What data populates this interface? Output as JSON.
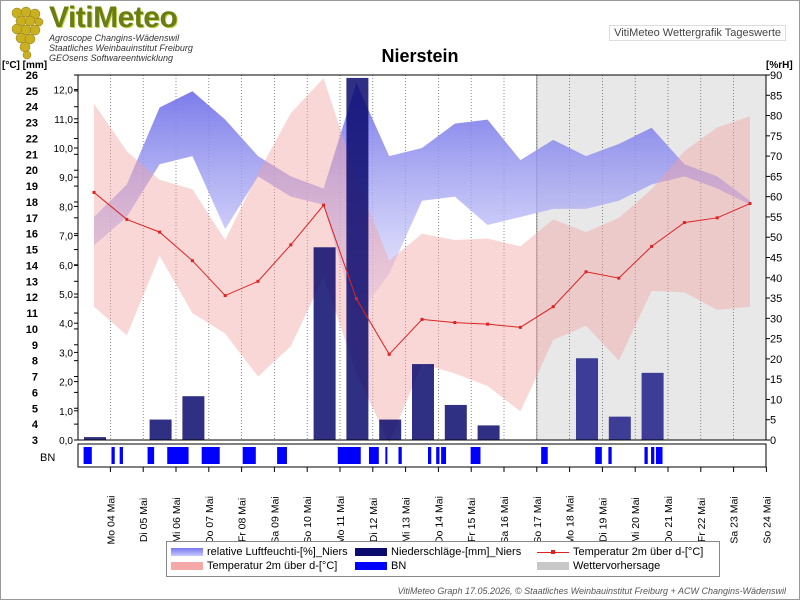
{
  "header": {
    "logo_title": "VitiMeteo",
    "logo_sub1": "Agroscope Changins-Wädenswil",
    "logo_sub2": "Staatliches Weinbauinstitut Freiburg",
    "logo_sub3": "GEOsens Softwareentwicklung",
    "badge": "VitiMeteo Wettergrafik Tageswerte",
    "title": "Nierstein",
    "left_unit": "[°C] [mm]",
    "right_unit": "[%rH]"
  },
  "footer": "VitiMeteo Graph 17.05.2026, © Staatliches Weinbauinstitut Freiburg + ACW Changins-Wädenswil",
  "legend": [
    {
      "label": "relative Luftfeuchti-[%]_Niers",
      "color": "#8888ee",
      "kind": "band"
    },
    {
      "label": "Niederschläge-[mm]_Niers",
      "color": "#0b0b6e",
      "kind": "bar"
    },
    {
      "label": "Temperatur 2m über d-[°C]",
      "color": "#dd2222",
      "kind": "line"
    },
    {
      "label": "Temperatur 2m über d-[°C]",
      "color": "#f4a8a8",
      "kind": "band"
    },
    {
      "label": "BN",
      "color": "#0000ff",
      "kind": "bar"
    },
    {
      "label": "Wettervorhersage",
      "color": "#c8c8c8",
      "kind": "bar"
    }
  ],
  "chart_data": {
    "type": "line",
    "title": "Nierstein",
    "x_labels": [
      "Mo 04 Mai",
      "Di 05 Mai",
      "Mi 06 Mai",
      "Do 07 Mai",
      "Fr 08 Mai",
      "Sa 09 Mai",
      "So 10 Mai",
      "Mo 11 Mai",
      "Di 12 Mai",
      "Mi 13 Mai",
      "Do 14 Mai",
      "Fr 15 Mai",
      "Sa 16 Mai",
      "So 17 Mai",
      "Mo 18 Mai",
      "Di 19 Mai",
      "Mi 20 Mai",
      "Do 21 Mai",
      "Fr 22 Mai",
      "Sa 23 Mai",
      "So 24 Mai"
    ],
    "temp_ticks": [
      3,
      4,
      5,
      6,
      7,
      8,
      9,
      10,
      11,
      12,
      13,
      14,
      15,
      16,
      17,
      18,
      19,
      20,
      21,
      22,
      23,
      24,
      25,
      26
    ],
    "precip_ticks": [
      "0,0",
      "1,0",
      "2,0",
      "3,0",
      "4,0",
      "5,0",
      "6,0",
      "7,0",
      "8,0",
      "9,0",
      "10,0",
      "11,0",
      "12,0"
    ],
    "rh_ticks": [
      0,
      5,
      10,
      15,
      20,
      25,
      30,
      35,
      40,
      45,
      50,
      55,
      60,
      65,
      70,
      75,
      80,
      85,
      90
    ],
    "temp_range": [
      3,
      26
    ],
    "precip_range": [
      0,
      12.5
    ],
    "rh_range": [
      0,
      90
    ],
    "temp_mean": [
      18.6,
      16.9,
      16.1,
      14.3,
      12.1,
      13.0,
      15.3,
      17.8,
      11.9,
      8.4,
      10.6,
      10.4,
      10.3,
      10.1,
      11.4,
      13.6,
      13.2,
      15.2,
      16.7,
      17.0,
      17.9
    ],
    "temp_max": [
      24.2,
      21.2,
      19.4,
      18.8,
      15.6,
      19.8,
      23.6,
      25.8,
      19.5,
      14.3,
      16.0,
      15.6,
      15.7,
      15.2,
      16.9,
      16.1,
      17.0,
      18.8,
      21.2,
      22.7,
      23.4
    ],
    "temp_min": [
      11.4,
      9.6,
      14.6,
      11.0,
      9.7,
      7.0,
      8.9,
      13.3,
      7.2,
      2.8,
      7.8,
      7.2,
      6.4,
      4.8,
      9.3,
      10.2,
      8.0,
      12.4,
      12.3,
      11.2,
      11.4
    ],
    "rh_max": [
      55,
      63,
      82,
      86,
      79,
      70,
      65,
      62,
      88,
      70,
      72,
      78,
      79,
      69,
      74,
      70,
      73,
      77,
      68,
      65,
      59
    ],
    "rh_min": [
      48,
      55,
      68,
      70,
      52,
      65,
      60,
      58,
      30,
      41,
      59,
      60,
      53,
      55,
      57,
      57,
      59,
      63,
      65,
      62,
      58
    ],
    "precipitation": [
      0.1,
      0.0,
      0.7,
      1.5,
      0.0,
      0.0,
      0.0,
      6.6,
      12.4,
      0.7,
      2.6,
      1.2,
      0.5,
      0.0,
      0.0,
      2.8,
      0.8,
      2.3,
      0.0,
      0.0,
      0.0
    ],
    "bn_segments": [
      [
        0.0,
        0.25
      ],
      [
        0.85,
        0.95
      ],
      [
        1.1,
        1.2
      ],
      [
        1.95,
        2.15
      ],
      [
        2.55,
        3.2
      ],
      [
        3.6,
        4.15
      ],
      [
        4.85,
        5.25
      ],
      [
        5.9,
        6.2
      ],
      [
        7.75,
        8.45
      ],
      [
        8.7,
        9.0
      ],
      [
        9.2,
        9.25
      ],
      [
        9.6,
        9.7
      ],
      [
        10.5,
        10.6
      ],
      [
        10.75,
        10.85
      ],
      [
        10.9,
        11.05
      ],
      [
        11.8,
        12.1
      ],
      [
        13.95,
        14.15
      ],
      [
        15.6,
        15.8
      ],
      [
        16.0,
        16.1
      ],
      [
        17.1,
        17.2
      ],
      [
        17.3,
        17.4
      ],
      [
        17.45,
        17.65
      ]
    ],
    "forecast_start": 14,
    "grid": true
  }
}
